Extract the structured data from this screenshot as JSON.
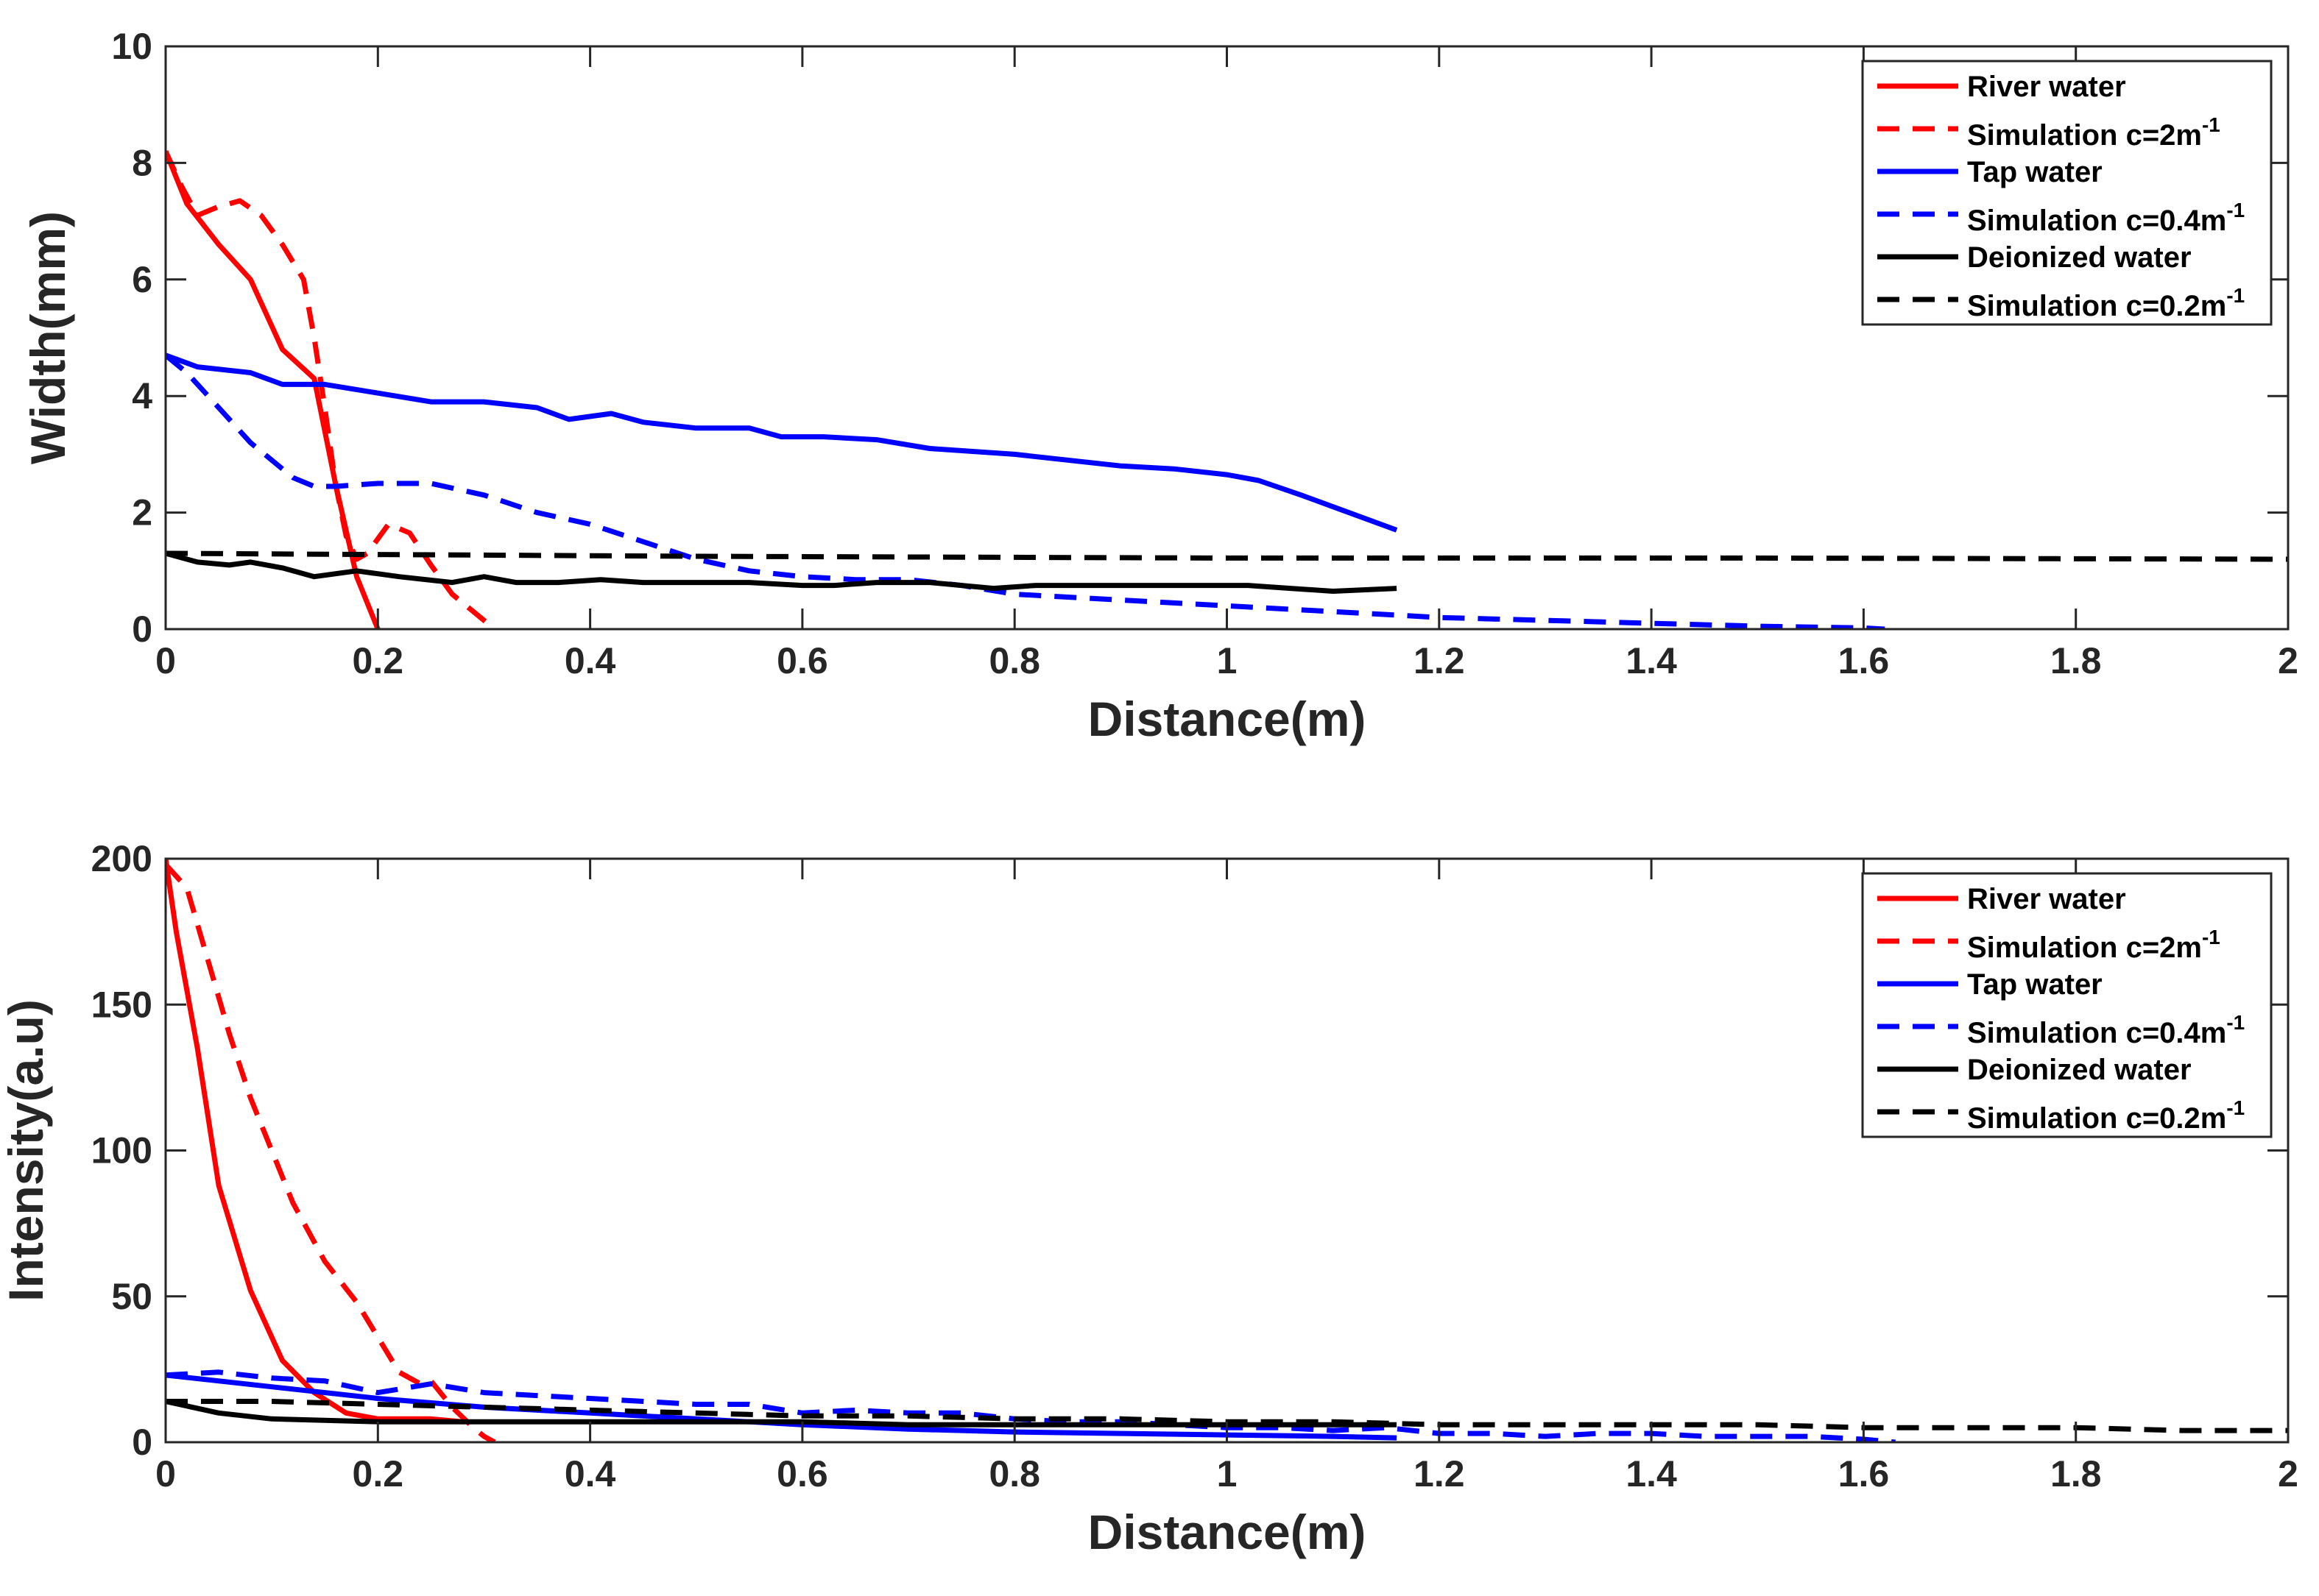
{
  "chart_data": [
    {
      "type": "line",
      "xlabel": "Distance(m)",
      "ylabel": "Width(mm)",
      "xlim": [
        0,
        2
      ],
      "ylim": [
        0,
        10
      ],
      "xticks": [
        0,
        0.2,
        0.4,
        0.6,
        0.8,
        1,
        1.2,
        1.4,
        1.6,
        1.8,
        2
      ],
      "xtick_labels": [
        "0",
        "0.2",
        "0.4",
        "0.6",
        "0.8",
        "1",
        "1.2",
        "1.4",
        "1.6",
        "1.8",
        "2"
      ],
      "yticks": [
        0,
        2,
        4,
        6,
        8,
        10
      ],
      "ytick_labels": [
        "0",
        "2",
        "4",
        "6",
        "8",
        "10"
      ],
      "legend_position": "top-right",
      "series": [
        {
          "name": "River water",
          "legend_text": "River water",
          "legend_sup": "",
          "color": "#ff0000",
          "dash": "solid",
          "x": [
            0,
            0.02,
            0.05,
            0.08,
            0.11,
            0.14,
            0.16,
            0.18,
            0.2
          ],
          "y": [
            8.2,
            7.3,
            6.6,
            6.0,
            4.8,
            4.3,
            2.5,
            0.9,
            0
          ]
        },
        {
          "name": "Simulation c=2m-1",
          "legend_text": "Simulation c=2m",
          "legend_sup": "-1",
          "color": "#ff0000",
          "dash": "dashed",
          "x": [
            0,
            0.015,
            0.03,
            0.05,
            0.07,
            0.09,
            0.11,
            0.13,
            0.14,
            0.15,
            0.16,
            0.17,
            0.18,
            0.19,
            0.21,
            0.23,
            0.25,
            0.27,
            0.29,
            0.31
          ],
          "y": [
            8.2,
            7.6,
            7.1,
            7.25,
            7.35,
            7.1,
            6.6,
            6.0,
            5.0,
            3.8,
            2.5,
            1.6,
            1.2,
            1.3,
            1.8,
            1.65,
            1.1,
            0.6,
            0.3,
            0
          ]
        },
        {
          "name": "Tap water",
          "legend_text": "Tap water",
          "legend_sup": "",
          "color": "#0000ff",
          "dash": "solid",
          "x": [
            0,
            0.03,
            0.08,
            0.11,
            0.15,
            0.2,
            0.25,
            0.3,
            0.35,
            0.38,
            0.42,
            0.45,
            0.5,
            0.55,
            0.58,
            0.62,
            0.67,
            0.72,
            0.8,
            0.85,
            0.9,
            0.95,
            1.0,
            1.03,
            1.07,
            1.1,
            1.16
          ],
          "y": [
            4.7,
            4.5,
            4.4,
            4.2,
            4.2,
            4.05,
            3.9,
            3.9,
            3.8,
            3.6,
            3.7,
            3.55,
            3.45,
            3.45,
            3.3,
            3.3,
            3.25,
            3.1,
            3.0,
            2.9,
            2.8,
            2.75,
            2.65,
            2.55,
            2.3,
            2.1,
            1.7
          ]
        },
        {
          "name": "Simulation c=0.4m-1",
          "legend_text": "Simulation c=0.4m",
          "legend_sup": "-1",
          "color": "#0000ff",
          "dash": "dashed",
          "x": [
            0,
            0.02,
            0.04,
            0.06,
            0.08,
            0.1,
            0.12,
            0.14,
            0.16,
            0.2,
            0.25,
            0.3,
            0.35,
            0.4,
            0.45,
            0.5,
            0.55,
            0.6,
            0.65,
            0.7,
            0.75,
            0.8,
            0.9,
            1.0,
            1.1,
            1.2,
            1.3,
            1.4,
            1.5,
            1.6,
            1.62
          ],
          "y": [
            4.7,
            4.4,
            4.0,
            3.6,
            3.2,
            2.9,
            2.6,
            2.45,
            2.45,
            2.5,
            2.5,
            2.3,
            2.0,
            1.8,
            1.5,
            1.2,
            1.0,
            0.9,
            0.85,
            0.85,
            0.75,
            0.6,
            0.5,
            0.4,
            0.3,
            0.2,
            0.15,
            0.1,
            0.05,
            0.02,
            0
          ]
        },
        {
          "name": "Deionized water",
          "legend_text": "Deionized water",
          "legend_sup": "",
          "color": "#000000",
          "dash": "solid",
          "x": [
            0,
            0.03,
            0.06,
            0.08,
            0.11,
            0.14,
            0.18,
            0.22,
            0.27,
            0.3,
            0.33,
            0.37,
            0.41,
            0.45,
            0.5,
            0.55,
            0.6,
            0.63,
            0.67,
            0.72,
            0.78,
            0.82,
            0.9,
            0.97,
            1.02,
            1.06,
            1.1,
            1.16
          ],
          "y": [
            1.3,
            1.15,
            1.1,
            1.15,
            1.05,
            0.9,
            1.0,
            0.9,
            0.8,
            0.9,
            0.8,
            0.8,
            0.85,
            0.8,
            0.8,
            0.8,
            0.75,
            0.75,
            0.8,
            0.8,
            0.7,
            0.75,
            0.75,
            0.75,
            0.75,
            0.7,
            0.65,
            0.7
          ]
        },
        {
          "name": "Simulation c=0.2m-1",
          "legend_text": "Simulation c=0.2m",
          "legend_sup": "-1",
          "color": "#000000",
          "dash": "dashed",
          "x": [
            0,
            0.5,
            1.0,
            1.5,
            2.0
          ],
          "y": [
            1.3,
            1.25,
            1.22,
            1.22,
            1.2
          ]
        }
      ]
    },
    {
      "type": "line",
      "xlabel": "Distance(m)",
      "ylabel": "Intensity(a.u)",
      "xlim": [
        0,
        2
      ],
      "ylim": [
        0,
        200
      ],
      "xticks": [
        0,
        0.2,
        0.4,
        0.6,
        0.8,
        1,
        1.2,
        1.4,
        1.6,
        1.8,
        2
      ],
      "xtick_labels": [
        "0",
        "0.2",
        "0.4",
        "0.6",
        "0.8",
        "1",
        "1.2",
        "1.4",
        "1.6",
        "1.8",
        "2"
      ],
      "yticks": [
        0,
        50,
        100,
        150,
        200
      ],
      "ytick_labels": [
        "0",
        "50",
        "100",
        "150",
        "200"
      ],
      "legend_position": "top-right",
      "series": [
        {
          "name": "River water",
          "legend_text": "River water",
          "legend_sup": "",
          "color": "#ff0000",
          "dash": "solid",
          "x": [
            0,
            0.01,
            0.03,
            0.05,
            0.08,
            0.11,
            0.14,
            0.17,
            0.2,
            0.25,
            0.28
          ],
          "y": [
            200,
            175,
            135,
            88,
            52,
            28,
            17,
            10,
            8,
            8,
            7
          ]
        },
        {
          "name": "Simulation c=2m-1",
          "legend_text": "Simulation c=2m",
          "legend_sup": "-1",
          "color": "#ff0000",
          "dash": "dashed",
          "x": [
            0,
            0.02,
            0.04,
            0.06,
            0.08,
            0.1,
            0.12,
            0.15,
            0.18,
            0.2,
            0.22,
            0.24,
            0.25,
            0.27,
            0.29,
            0.3,
            0.31
          ],
          "y": [
            198,
            190,
            165,
            140,
            118,
            100,
            82,
            62,
            48,
            36,
            24,
            20,
            21,
            12,
            5,
            2,
            0
          ]
        },
        {
          "name": "Tap water",
          "legend_text": "Tap water",
          "legend_sup": "",
          "color": "#0000ff",
          "dash": "solid",
          "x": [
            0,
            0.1,
            0.2,
            0.3,
            0.4,
            0.5,
            0.6,
            0.7,
            0.8,
            0.9,
            1.0,
            1.1,
            1.16
          ],
          "y": [
            23,
            19,
            15,
            12,
            10,
            8,
            6,
            4.5,
            3.5,
            3,
            2.5,
            2,
            1.5
          ]
        },
        {
          "name": "Simulation c=0.4m-1",
          "legend_text": "Simulation c=0.4m",
          "legend_sup": "-1",
          "color": "#0000ff",
          "dash": "dashed",
          "x": [
            0,
            0.05,
            0.1,
            0.15,
            0.2,
            0.25,
            0.3,
            0.35,
            0.4,
            0.45,
            0.5,
            0.55,
            0.6,
            0.65,
            0.7,
            0.75,
            0.8,
            0.85,
            0.9,
            0.95,
            1.0,
            1.05,
            1.1,
            1.15,
            1.2,
            1.25,
            1.3,
            1.35,
            1.4,
            1.45,
            1.5,
            1.55,
            1.6,
            1.63
          ],
          "y": [
            23,
            24,
            22,
            21,
            17,
            20,
            17,
            16,
            15,
            14,
            13,
            13,
            10,
            11,
            10,
            10,
            8,
            7,
            7,
            6,
            5,
            5,
            4,
            5,
            3,
            3,
            2,
            3,
            3,
            2,
            2,
            2,
            1,
            0
          ]
        },
        {
          "name": "Deionized water",
          "legend_text": "Deionized water",
          "legend_sup": "",
          "color": "#000000",
          "dash": "solid",
          "x": [
            0,
            0.05,
            0.1,
            0.2,
            0.3,
            0.4,
            0.5,
            0.6,
            0.7,
            0.8,
            0.9,
            1.0,
            1.1,
            1.16
          ],
          "y": [
            14,
            10,
            8,
            7,
            7,
            7,
            7,
            7,
            6,
            6,
            6,
            6,
            6,
            6
          ]
        },
        {
          "name": "Simulation c=0.2m-1",
          "legend_text": "Simulation c=0.2m",
          "legend_sup": "-1",
          "color": "#000000",
          "dash": "dashed",
          "x": [
            0,
            0.1,
            0.2,
            0.3,
            0.4,
            0.5,
            0.6,
            0.7,
            0.8,
            0.9,
            1.0,
            1.1,
            1.2,
            1.3,
            1.4,
            1.5,
            1.6,
            1.7,
            1.8,
            1.9,
            2.0
          ],
          "y": [
            14,
            14,
            13,
            12,
            11,
            10,
            9,
            9,
            8,
            8,
            7,
            7,
            6,
            6,
            6,
            6,
            5,
            5,
            5,
            4,
            4
          ]
        }
      ]
    }
  ]
}
